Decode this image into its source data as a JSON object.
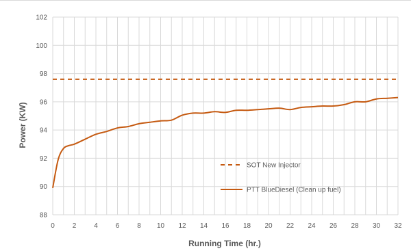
{
  "chart_data": {
    "type": "line",
    "title": "",
    "xlabel": "Running Time (hr.)",
    "ylabel": "Power (KW)",
    "xlim": [
      0,
      32
    ],
    "ylim": [
      88,
      102
    ],
    "x_ticks": [
      0,
      2,
      4,
      6,
      8,
      10,
      12,
      14,
      16,
      18,
      20,
      22,
      24,
      26,
      28,
      30,
      32
    ],
    "y_ticks": [
      88,
      90,
      92,
      94,
      96,
      98,
      100,
      102
    ],
    "grid": true,
    "legend_position": "inside-bottom-right",
    "series": [
      {
        "name": "SOT New Injector",
        "style": "dashed",
        "color": "#c55a11",
        "x": [
          0,
          32
        ],
        "y": [
          97.6,
          97.6
        ]
      },
      {
        "name": "PTT BlueDiesel (Clean up fuel)",
        "style": "solid",
        "color": "#c55a11",
        "x": [
          0,
          0.5,
          1,
          1.5,
          2,
          3,
          4,
          5,
          6,
          7,
          8,
          9,
          10,
          11,
          12,
          13,
          14,
          15,
          16,
          17,
          18,
          19,
          20,
          21,
          22,
          23,
          24,
          25,
          26,
          27,
          28,
          29,
          30,
          31,
          32
        ],
        "y": [
          89.9,
          91.9,
          92.7,
          92.9,
          93.0,
          93.35,
          93.7,
          93.9,
          94.15,
          94.25,
          94.45,
          94.55,
          94.65,
          94.7,
          95.05,
          95.2,
          95.2,
          95.3,
          95.25,
          95.4,
          95.4,
          95.45,
          95.5,
          95.55,
          95.45,
          95.6,
          95.65,
          95.7,
          95.7,
          95.8,
          96.0,
          96.0,
          96.2,
          96.25,
          96.3
        ]
      }
    ]
  }
}
